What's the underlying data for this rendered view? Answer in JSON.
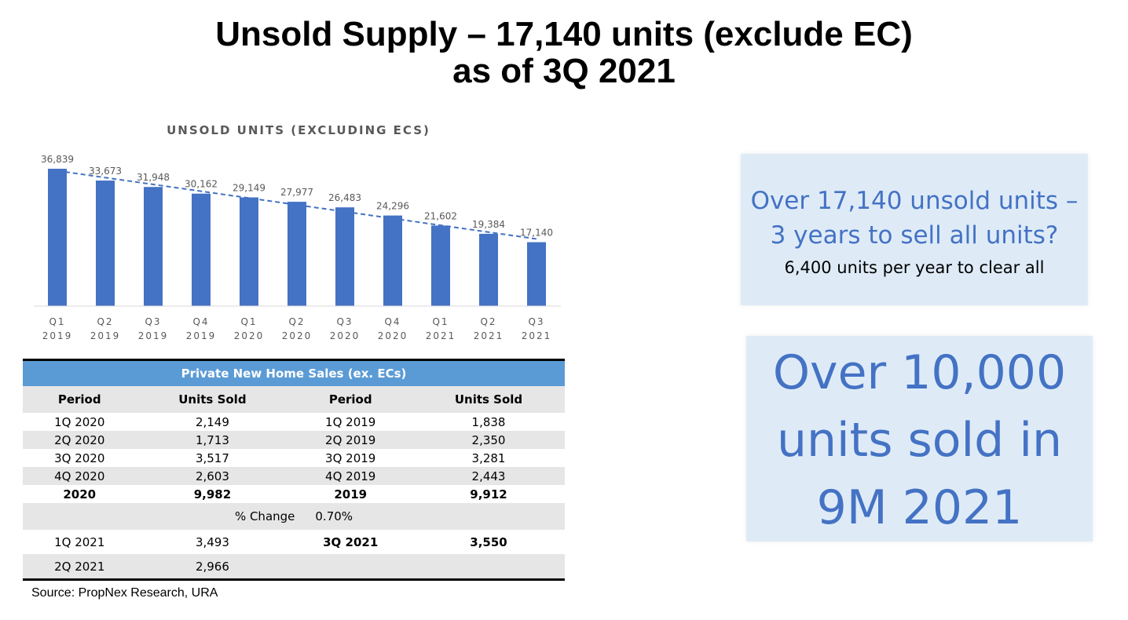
{
  "slide": {
    "title_line1": "Unsold Supply – 17,140 units (exclude EC)",
    "title_line2": "as of 3Q 2021",
    "source": "Source: PropNex Research, URA"
  },
  "chart_data": {
    "type": "bar",
    "title": "UNSOLD UNITS (EXCLUDING ECS)",
    "categories": [
      [
        "Q1",
        "2019"
      ],
      [
        "Q2",
        "2019"
      ],
      [
        "Q3",
        "2019"
      ],
      [
        "Q4",
        "2019"
      ],
      [
        "Q1",
        "2020"
      ],
      [
        "Q2",
        "2020"
      ],
      [
        "Q3",
        "2020"
      ],
      [
        "Q4",
        "2020"
      ],
      [
        "Q1",
        "2021"
      ],
      [
        "Q2",
        "2021"
      ],
      [
        "Q3",
        "2021"
      ]
    ],
    "values": [
      36839,
      33673,
      31948,
      30162,
      29149,
      27977,
      26483,
      24296,
      21602,
      19384,
      17140
    ],
    "data_labels": [
      "36,839",
      "33,673",
      "31,948",
      "30,162",
      "29,149",
      "27,977",
      "26,483",
      "24,296",
      "21,602",
      "19,384",
      "17,140"
    ],
    "ylim": [
      0,
      40000
    ],
    "trendline": "linear dashed",
    "grid": false,
    "legend": "none",
    "colors": {
      "bar": "#4472c4",
      "trend": "#4472c4",
      "label": "#595959",
      "axis": "#d9d9d9"
    }
  },
  "table": {
    "title": "Private New Home Sales (ex. ECs)",
    "headers": [
      "Period",
      "Units Sold",
      "Period",
      "Units Sold"
    ],
    "rows": [
      [
        "1Q 2020",
        "2,149",
        "1Q 2019",
        "1,838"
      ],
      [
        "2Q 2020",
        "1,713",
        "2Q 2019",
        "2,350"
      ],
      [
        "3Q 2020",
        "3,517",
        "3Q 2019",
        "3,281"
      ],
      [
        "4Q 2020",
        "2,603",
        "4Q 2019",
        "2,443"
      ]
    ],
    "totals": [
      "2020",
      "9,982",
      "2019",
      "9,912"
    ],
    "change_label": "% Change",
    "change_value": "0.70%",
    "row_2021_q1": [
      "1Q 2021",
      "3,493",
      "3Q 2021",
      "3,550"
    ],
    "row_2021_q2": [
      "2Q 2021",
      "2,966"
    ]
  },
  "callout1": {
    "line1": "Over 17,140 unsold units –",
    "line2": "3 years to sell all units?",
    "line3": "6,400 units per year to clear all"
  },
  "callout2": {
    "line1": "Over 10,000",
    "line2": "units sold in",
    "line3": "9M 2021"
  }
}
